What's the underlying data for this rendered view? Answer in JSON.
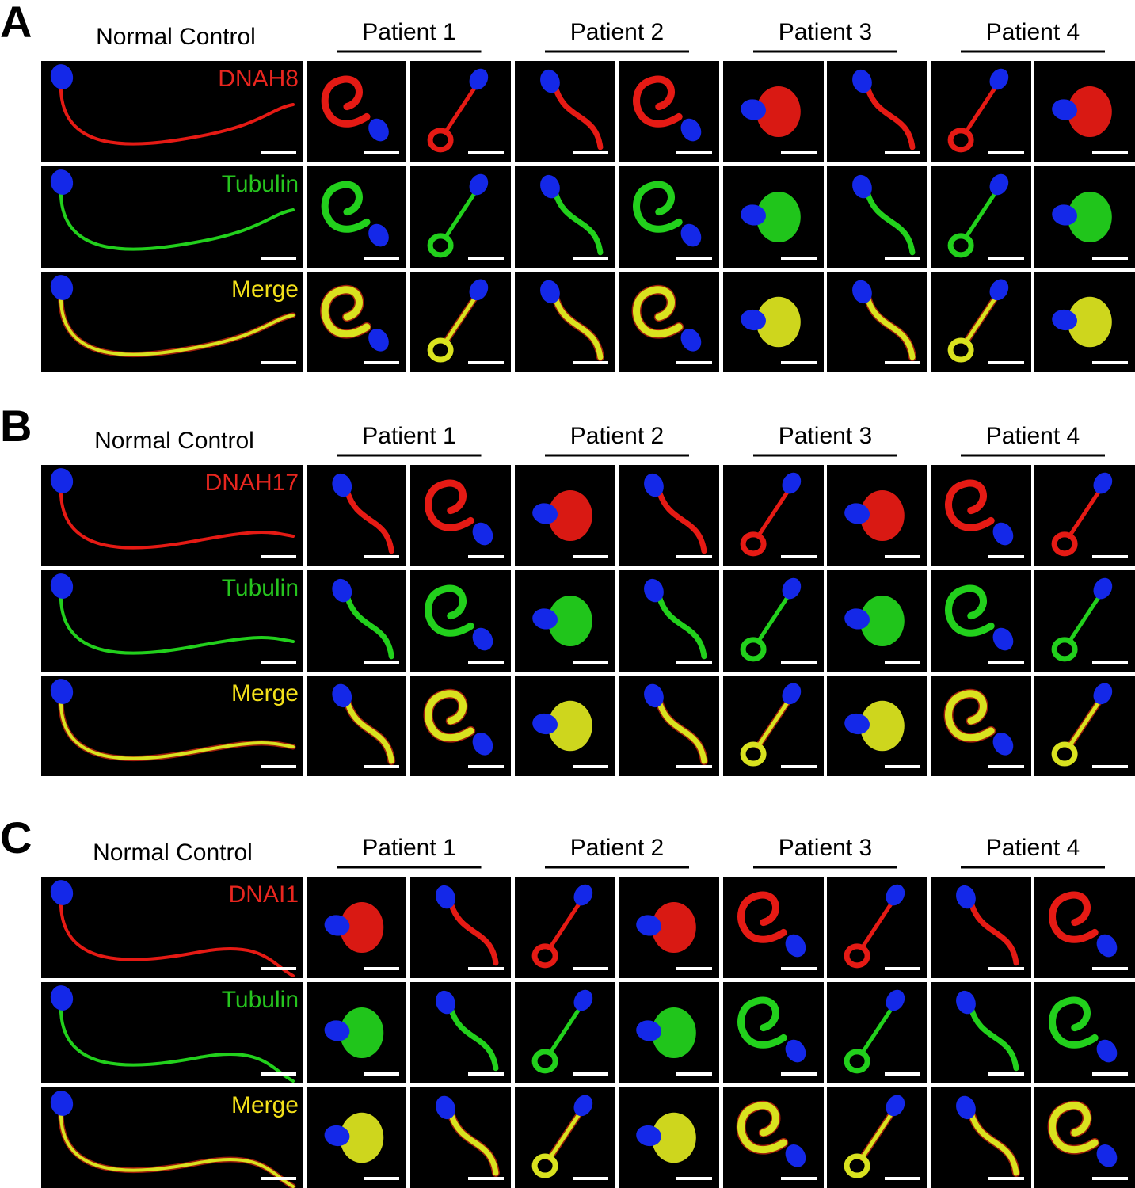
{
  "panels": [
    {
      "letter": "A",
      "control_label": "Normal Control",
      "patients": [
        "Patient 1",
        "Patient 2",
        "Patient 3",
        "Patient 4"
      ],
      "rows": [
        "DNAH8",
        "Tubulin",
        "Merge"
      ]
    },
    {
      "letter": "B",
      "control_label": "Normal Control",
      "patients": [
        "Patient 1",
        "Patient 2",
        "Patient 3",
        "Patient 4"
      ],
      "rows": [
        "DNAH17",
        "Tubulin",
        "Merge"
      ]
    },
    {
      "letter": "C",
      "control_label": "Normal Control",
      "patients": [
        "Patient 1",
        "Patient 2",
        "Patient 3",
        "Patient 4"
      ],
      "rows": [
        "DNAI1",
        "Tubulin",
        "Merge"
      ]
    }
  ]
}
